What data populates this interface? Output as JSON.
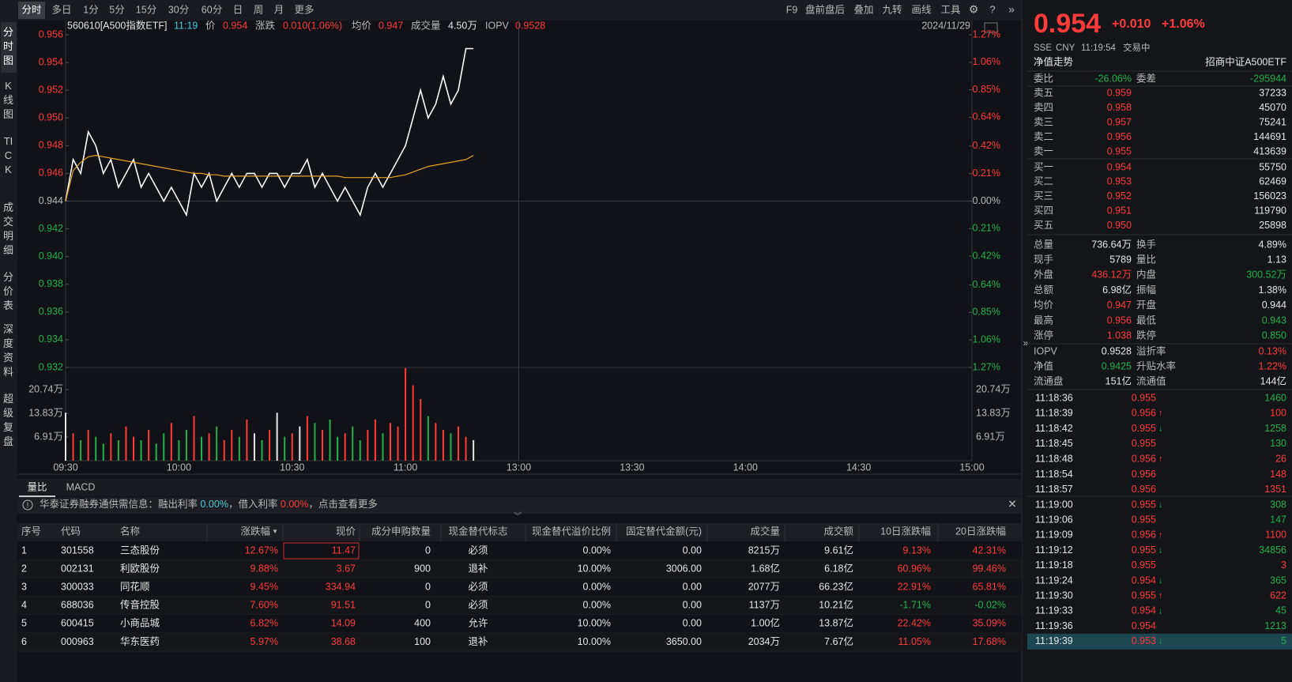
{
  "toolbar": {
    "tabs": [
      "分时",
      "多日",
      "1分",
      "5分",
      "15分",
      "30分",
      "60分",
      "日",
      "周",
      "月",
      "更多"
    ],
    "right": [
      "F9",
      "盘前盘后",
      "叠加",
      "九转",
      "画线",
      "工具"
    ]
  },
  "sidebar": [
    "分时图",
    "K线图",
    "TICK",
    "成交明细",
    "分价表",
    "深度资料",
    "超级复盘"
  ],
  "info": {
    "code": "560610[A500指数ETF]",
    "time": "11:19",
    "price_label": "价",
    "price": "0.954",
    "change_label": "涨跌",
    "change": "0.010(1.06%)",
    "avg_label": "均价",
    "avg": "0.947",
    "vol_label": "成交量",
    "vol": "4.50万",
    "iopv_label": "IOPV",
    "iopv": "0.9528",
    "date": "2024/11/29"
  },
  "chart_data": {
    "type": "line",
    "x": [
      "09:30",
      "09:32",
      "09:34",
      "09:36",
      "09:38",
      "09:40",
      "09:42",
      "09:44",
      "09:46",
      "09:48",
      "09:50",
      "09:52",
      "09:54",
      "09:56",
      "09:58",
      "10:00",
      "10:02",
      "10:04",
      "10:06",
      "10:08",
      "10:10",
      "10:12",
      "10:14",
      "10:16",
      "10:18",
      "10:20",
      "10:22",
      "10:24",
      "10:26",
      "10:28",
      "10:30",
      "10:32",
      "10:34",
      "10:36",
      "10:38",
      "10:40",
      "10:42",
      "10:44",
      "10:46",
      "10:48",
      "10:50",
      "10:52",
      "10:54",
      "10:56",
      "10:58",
      "11:00",
      "11:02",
      "11:04",
      "11:06",
      "11:08",
      "11:10",
      "11:12",
      "11:14",
      "11:16",
      "11:18"
    ],
    "series": [
      {
        "color": "#ffffff",
        "values": [
          0.944,
          0.947,
          0.946,
          0.949,
          0.948,
          0.946,
          0.947,
          0.945,
          0.946,
          0.947,
          0.945,
          0.946,
          0.945,
          0.944,
          0.945,
          0.944,
          0.943,
          0.946,
          0.945,
          0.946,
          0.944,
          0.945,
          0.946,
          0.945,
          0.946,
          0.946,
          0.945,
          0.946,
          0.946,
          0.945,
          0.946,
          0.946,
          0.947,
          0.945,
          0.946,
          0.945,
          0.944,
          0.945,
          0.944,
          0.943,
          0.945,
          0.946,
          0.945,
          0.946,
          0.947,
          0.948,
          0.95,
          0.952,
          0.95,
          0.951,
          0.953,
          0.951,
          0.952,
          0.955,
          0.955
        ]
      },
      {
        "color": "#e0a526",
        "values": [
          0.944,
          0.9462,
          0.9468,
          0.9472,
          0.9473,
          0.9472,
          0.9471,
          0.947,
          0.9469,
          0.9468,
          0.9467,
          0.9466,
          0.9465,
          0.9464,
          0.9463,
          0.9462,
          0.9461,
          0.946,
          0.946,
          0.9459,
          0.9459,
          0.9458,
          0.9458,
          0.9458,
          0.9458,
          0.9458,
          0.9458,
          0.9458,
          0.9458,
          0.9458,
          0.9458,
          0.9458,
          0.9458,
          0.9458,
          0.9458,
          0.9458,
          0.9458,
          0.9457,
          0.9457,
          0.9457,
          0.9457,
          0.9457,
          0.9457,
          0.9457,
          0.9458,
          0.9459,
          0.9461,
          0.9463,
          0.9465,
          0.9466,
          0.9467,
          0.9468,
          0.9469,
          0.947,
          0.9473
        ]
      },
      {
        "type": "bar",
        "axis": "y3",
        "values": [
          14,
          8,
          6,
          9,
          7,
          5,
          8,
          6,
          10,
          7,
          6,
          9,
          5,
          8,
          11,
          6,
          9,
          13,
          7,
          8,
          10,
          6,
          9,
          7,
          12,
          8,
          6,
          9,
          14,
          7,
          8,
          10,
          13,
          11,
          9,
          12,
          7,
          8,
          10,
          6,
          9,
          12,
          8,
          11,
          10,
          27,
          22,
          18,
          13,
          11,
          9,
          8,
          10,
          7,
          6
        ]
      }
    ],
    "ylim": [
      0.932,
      0.956
    ],
    "yticks": [
      {
        "value": 0.956,
        "label": "0.956"
      },
      {
        "value": 0.954,
        "label": "0.954"
      },
      {
        "value": 0.952,
        "label": "0.952"
      },
      {
        "value": 0.95,
        "label": "0.950"
      },
      {
        "value": 0.948,
        "label": "0.948"
      },
      {
        "value": 0.946,
        "label": "0.946"
      },
      {
        "value": 0.944,
        "label": "0.944"
      },
      {
        "value": 0.942,
        "label": "0.942"
      },
      {
        "value": 0.94,
        "label": "0.940"
      },
      {
        "value": 0.938,
        "label": "0.938"
      },
      {
        "value": 0.936,
        "label": "0.936"
      },
      {
        "value": 0.934,
        "label": "0.934"
      },
      {
        "value": 0.932,
        "label": "0.932"
      }
    ],
    "y2lim": [
      -1.27,
      1.27
    ],
    "y2ticks": [
      {
        "value": 1.27,
        "label": "1.27%"
      },
      {
        "value": 1.06,
        "label": "1.06%"
      },
      {
        "value": 0.85,
        "label": "0.85%"
      },
      {
        "value": 0.64,
        "label": "0.64%"
      },
      {
        "value": 0.42,
        "label": "0.42%"
      },
      {
        "value": 0.21,
        "label": "0.21%"
      },
      {
        "value": 0,
        "label": "0.00%"
      },
      {
        "value": -0.21,
        "label": "0.21%"
      },
      {
        "value": -0.42,
        "label": "0.42%"
      },
      {
        "value": -0.64,
        "label": "0.64%"
      },
      {
        "value": -0.85,
        "label": "0.85%"
      },
      {
        "value": -1.06,
        "label": "1.06%"
      },
      {
        "value": -1.27,
        "label": "1.27%"
      }
    ],
    "y3lim": [
      0,
      27.2
    ],
    "y3ticks": [
      {
        "value": 20.74,
        "label": "20.74万"
      },
      {
        "value": 13.83,
        "label": "13.83万"
      },
      {
        "value": 6.91,
        "label": "6.91万"
      }
    ],
    "xticks": [
      "09:30",
      "10:00",
      "10:30",
      "11:00",
      "13:00",
      "13:30",
      "14:00",
      "14:30",
      "15:00"
    ]
  },
  "indicator_tabs": [
    "量比",
    "MACD"
  ],
  "notice": [
    "华泰证券融券通供需信息：融出利率 ",
    "0.00%",
    "，借入利率 ",
    "0.00%",
    "，点击查看更多"
  ],
  "table": {
    "headers": [
      "序号",
      "代码",
      "名称",
      "涨跌幅",
      "现价",
      "成分申购数量",
      "现金替代标志",
      "现金替代溢价比例",
      "固定替代金额(元)",
      "成交量",
      "成交额",
      "10日涨跌幅",
      "20日涨跌幅"
    ],
    "rows": [
      [
        "1",
        "301558",
        "三态股份",
        "12.67%",
        "11.47",
        "0",
        "必须",
        "0.00%",
        "0.00",
        "8215万",
        "9.61亿",
        "9.13%",
        "42.31%"
      ],
      [
        "2",
        "002131",
        "利欧股份",
        "9.88%",
        "3.67",
        "900",
        "退补",
        "10.00%",
        "3006.00",
        "1.68亿",
        "6.18亿",
        "60.96%",
        "99.46%"
      ],
      [
        "3",
        "300033",
        "同花顺",
        "9.45%",
        "334.94",
        "0",
        "必须",
        "0.00%",
        "0.00",
        "2077万",
        "66.23亿",
        "22.91%",
        "65.81%"
      ],
      [
        "4",
        "688036",
        "传音控股",
        "7.60%",
        "91.51",
        "0",
        "必须",
        "0.00%",
        "0.00",
        "1137万",
        "10.21亿",
        "-1.71%",
        "-0.02%"
      ],
      [
        "5",
        "600415",
        "小商品城",
        "6.82%",
        "14.09",
        "400",
        "允许",
        "10.00%",
        "0.00",
        "1.00亿",
        "13.87亿",
        "22.42%",
        "35.09%"
      ],
      [
        "6",
        "000963",
        "华东医药",
        "5.97%",
        "38.68",
        "100",
        "退补",
        "10.00%",
        "3650.00",
        "2034万",
        "7.67亿",
        "11.05%",
        "17.68%"
      ]
    ]
  },
  "quote": {
    "price": "0.954",
    "change": "+0.010",
    "pct": "+1.06%",
    "meta": [
      "SSE",
      "CNY",
      "11:19:54",
      "交易中"
    ],
    "nav_trend": "净值走势",
    "fund_name": "招商中证A500ETF",
    "ratio": {
      "l1": "委比",
      "v1": "-26.06%",
      "l2": "委差",
      "v2": "-295944"
    },
    "book": [
      [
        "卖五",
        "0.959",
        "37233"
      ],
      [
        "卖四",
        "0.958",
        "45070"
      ],
      [
        "卖三",
        "0.957",
        "75241"
      ],
      [
        "卖二",
        "0.956",
        "144691"
      ],
      [
        "卖一",
        "0.955",
        "413639"
      ],
      [
        "买一",
        "0.954",
        "55750"
      ],
      [
        "买二",
        "0.953",
        "62469"
      ],
      [
        "买三",
        "0.952",
        "156023"
      ],
      [
        "买四",
        "0.951",
        "119790"
      ],
      [
        "买五",
        "0.950",
        "25898"
      ]
    ],
    "stats": [
      {
        "l1": "总量",
        "v1": "736.64万",
        "l2": "换手",
        "v2": "4.89%"
      },
      {
        "l1": "现手",
        "v1": "5789",
        "l2": "量比",
        "v2": "1.13"
      },
      {
        "l1": "外盘",
        "v1": "436.12万",
        "c1": "#ff3b3b",
        "l2": "内盘",
        "v2": "300.52万",
        "c2": "#22b14c"
      },
      {
        "l1": "总额",
        "v1": "6.98亿",
        "l2": "振幅",
        "v2": "1.38%"
      },
      {
        "l1": "均价",
        "v1": "0.947",
        "c1": "#ff3b3b",
        "l2": "开盘",
        "v2": "0.944"
      },
      {
        "l1": "最高",
        "v1": "0.956",
        "c1": "#ff3b3b",
        "l2": "最低",
        "v2": "0.943",
        "c2": "#22b14c"
      },
      {
        "l1": "涨停",
        "v1": "1.038",
        "c1": "#ff3b3b",
        "l2": "跌停",
        "v2": "0.850",
        "c2": "#22b14c"
      }
    ],
    "iopv": [
      {
        "l1": "IOPV",
        "v1": "0.9528",
        "l2": "溢折率",
        "v2": "0.13%",
        "c2": "#ff3b3b"
      },
      {
        "l1": "净值",
        "v1": "0.9425",
        "c1": "#22b14c",
        "l2": "升贴水率",
        "v2": "1.22%",
        "c2": "#ff3b3b"
      },
      {
        "l1": "流通盘",
        "v1": "151亿",
        "l2": "流通值",
        "v2": "144亿"
      }
    ],
    "trades": [
      {
        "time": "11:18:36",
        "price": "0.955",
        "volume": "1460",
        "color": "#22b14c"
      },
      {
        "time": "11:18:39",
        "price": "0.956",
        "arrow": "↑",
        "volume": "100",
        "color": "#ff3b3b"
      },
      {
        "time": "11:18:42",
        "price": "0.955",
        "arrow": "↓",
        "volume": "1258",
        "color": "#22b14c"
      },
      {
        "time": "11:18:45",
        "price": "0.955",
        "volume": "130",
        "color": "#22b14c"
      },
      {
        "time": "11:18:48",
        "price": "0.956",
        "arrow": "↑",
        "volume": "26",
        "color": "#ff3b3b"
      },
      {
        "time": "11:18:54",
        "price": "0.956",
        "volume": "148",
        "color": "#ff3b3b"
      },
      {
        "time": "11:18:57",
        "price": "0.956",
        "volume": "1351",
        "color": "#ff3b3b"
      },
      {
        "time": "11:19:00",
        "price": "0.955",
        "arrow": "↓",
        "volume": "308",
        "color": "#22b14c"
      },
      {
        "time": "11:19:06",
        "price": "0.955",
        "volume": "147",
        "color": "#22b14c"
      },
      {
        "time": "11:19:09",
        "price": "0.956",
        "arrow": "↑",
        "volume": "1100",
        "color": "#ff3b3b"
      },
      {
        "time": "11:19:12",
        "price": "0.955",
        "arrow": "↓",
        "volume": "34856",
        "color": "#22b14c"
      },
      {
        "time": "11:19:18",
        "price": "0.955",
        "volume": "3",
        "color": "#ff3b3b"
      },
      {
        "time": "11:19:24",
        "price": "0.954",
        "arrow": "↓",
        "volume": "365",
        "color": "#22b14c"
      },
      {
        "time": "11:19:30",
        "price": "0.955",
        "arrow": "↑",
        "volume": "622",
        "color": "#ff3b3b"
      },
      {
        "time": "11:19:33",
        "price": "0.954",
        "arrow": "↓",
        "volume": "45",
        "color": "#22b14c"
      },
      {
        "time": "11:19:36",
        "price": "0.954",
        "volume": "1213",
        "color": "#22b14c"
      },
      {
        "time": "11:19:39",
        "price": "0.953",
        "arrow": "↓",
        "volume": "5",
        "color": "#22b14c"
      }
    ]
  }
}
